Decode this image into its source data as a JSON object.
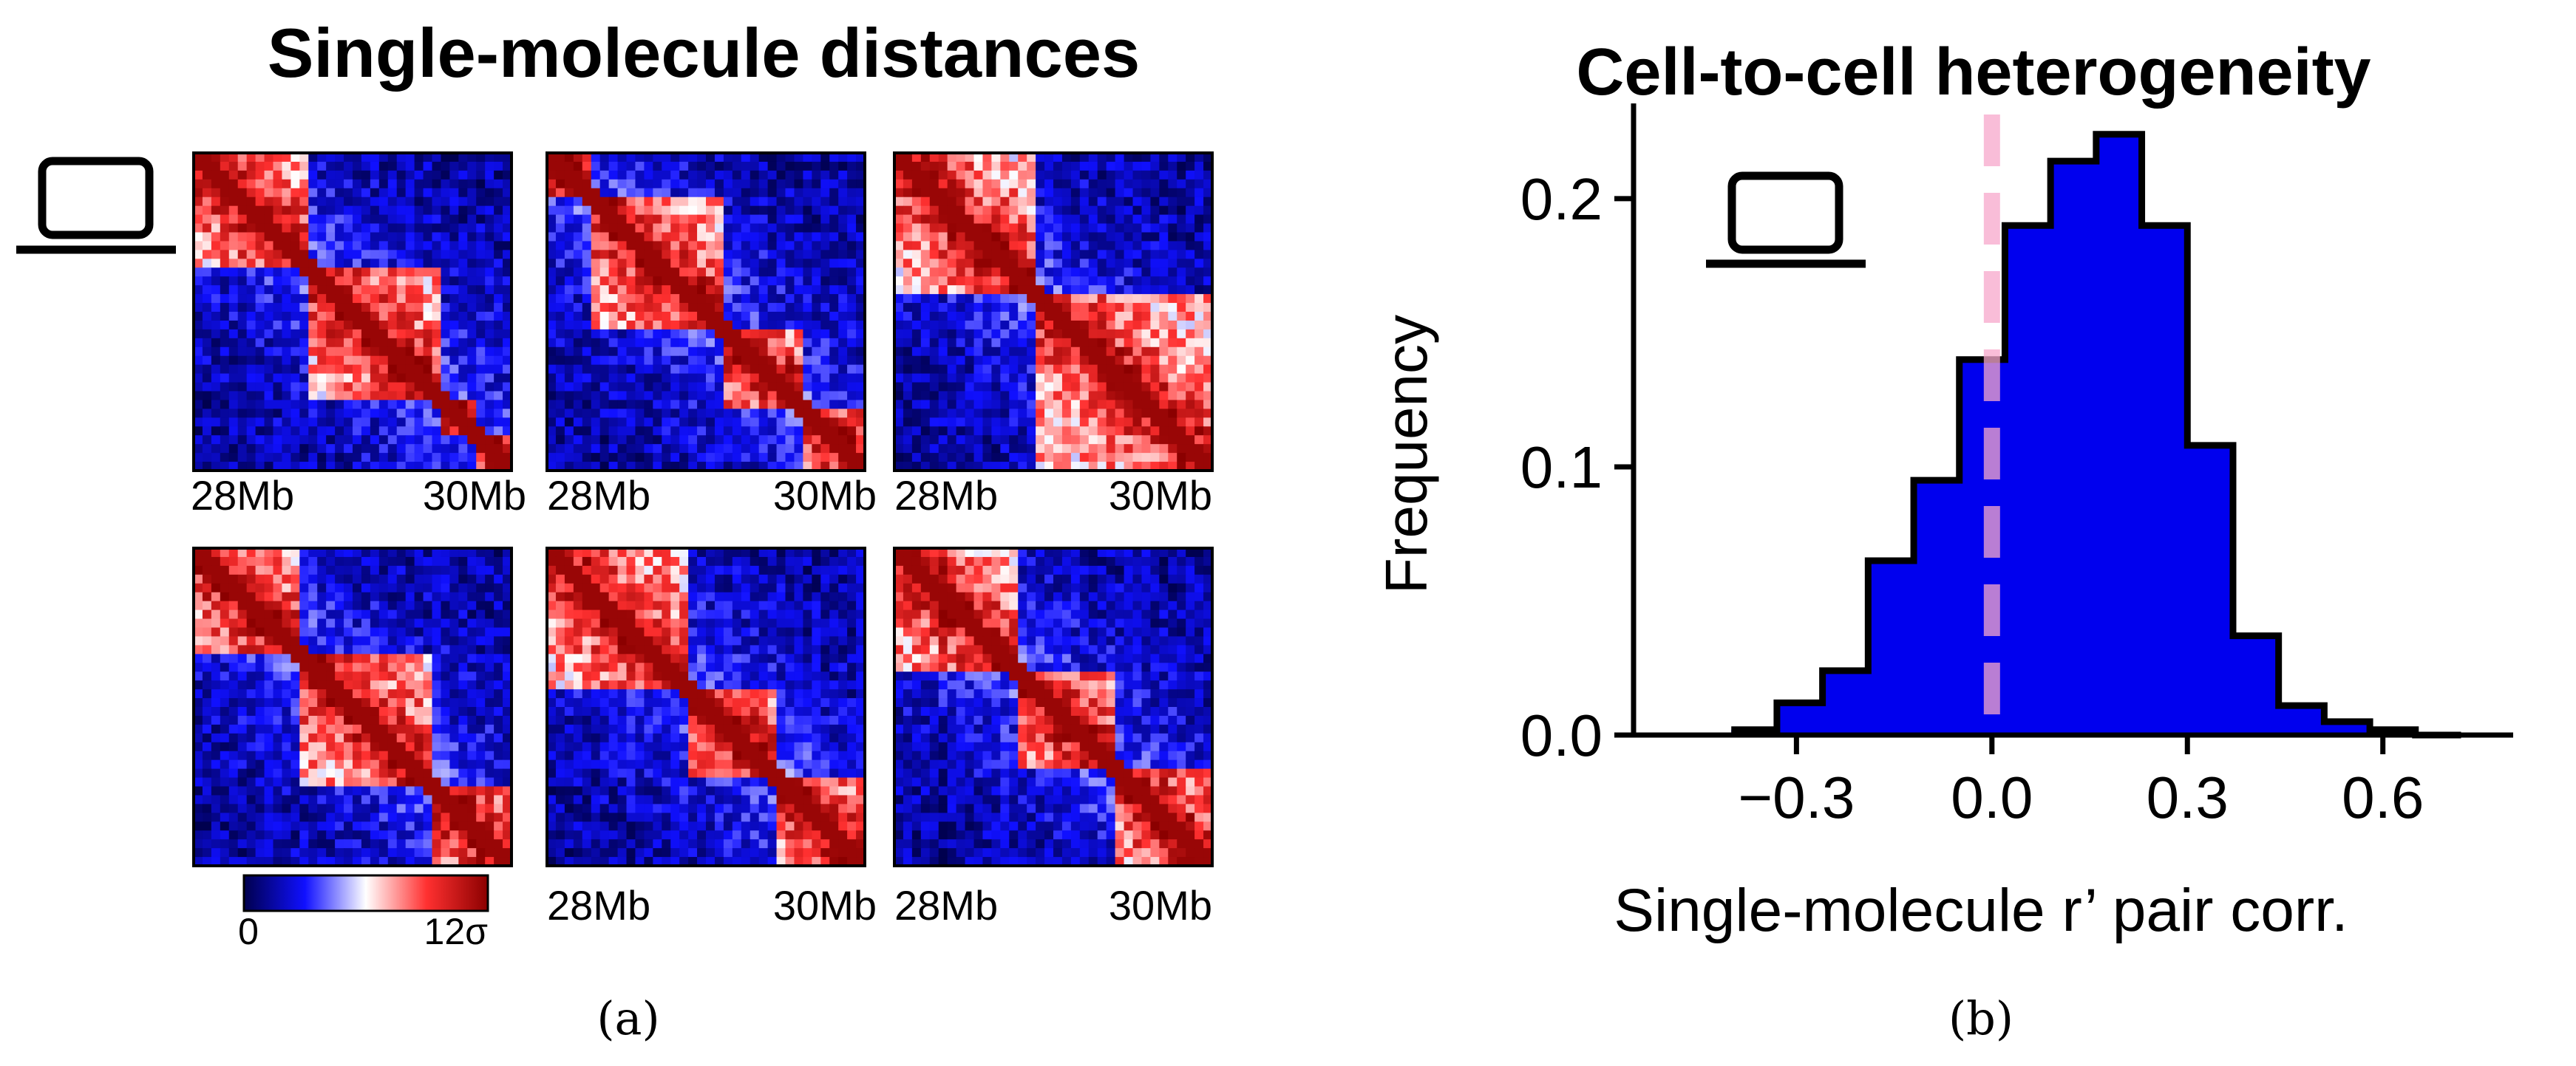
{
  "chart_data": [
    {
      "type": "heatmap",
      "panel_label": "(a)",
      "title": "Single-molecule distances",
      "icon": "laptop-icon",
      "x_tick_labels": [
        "28Mb",
        "30Mb"
      ],
      "colorbar": {
        "min_label": "0",
        "max_label": "12σ",
        "colors": [
          "#00004d",
          "#1010ff",
          "#ffffff",
          "#ff3030",
          "#8b0000"
        ]
      },
      "maps": [
        {
          "row": 1,
          "col": 1,
          "x_ticks_shown": true,
          "domains": [
            [
              0.0,
              0.35
            ],
            [
              0.35,
              0.78
            ],
            [
              0.78,
              0.88
            ],
            [
              0.88,
              1.0
            ]
          ]
        },
        {
          "row": 1,
          "col": 2,
          "x_ticks_shown": true,
          "domains": [
            [
              0.0,
              0.15
            ],
            [
              0.15,
              0.55
            ],
            [
              0.55,
              0.8
            ],
            [
              0.8,
              1.0
            ]
          ]
        },
        {
          "row": 1,
          "col": 3,
          "x_ticks_shown": true,
          "domains": [
            [
              0.0,
              0.45
            ],
            [
              0.45,
              1.0
            ]
          ]
        },
        {
          "row": 2,
          "col": 1,
          "x_ticks_shown": false,
          "domains": [
            [
              0.0,
              0.32
            ],
            [
              0.32,
              0.75
            ],
            [
              0.75,
              1.0
            ]
          ]
        },
        {
          "row": 2,
          "col": 2,
          "x_ticks_shown": true,
          "domains": [
            [
              0.0,
              0.45
            ],
            [
              0.45,
              0.72
            ],
            [
              0.72,
              1.0
            ]
          ]
        },
        {
          "row": 2,
          "col": 3,
          "x_ticks_shown": true,
          "domains": [
            [
              0.0,
              0.4
            ],
            [
              0.4,
              0.7
            ],
            [
              0.7,
              1.0
            ]
          ]
        }
      ]
    },
    {
      "type": "bar",
      "subtype": "histogram",
      "panel_label": "(b)",
      "title": "Cell-to-cell heterogeneity",
      "icon": "laptop-icon",
      "xlabel": "Single-molecule r’ pair corr.",
      "ylabel": "Frequency",
      "bin_edges": [
        -0.4,
        -0.33,
        -0.26,
        -0.19,
        -0.12,
        -0.05,
        0.02,
        0.09,
        0.16,
        0.23,
        0.3,
        0.37,
        0.44,
        0.51,
        0.58,
        0.65,
        0.72
      ],
      "values": [
        0.002,
        0.012,
        0.024,
        0.065,
        0.095,
        0.14,
        0.19,
        0.214,
        0.224,
        0.19,
        0.108,
        0.037,
        0.011,
        0.005,
        0.002,
        0.0
      ],
      "xlim": [
        -0.55,
        0.8
      ],
      "ylim": [
        0.0,
        0.23
      ],
      "x_ticks": [
        "−0.3",
        "0.0",
        "0.3",
        "0.6"
      ],
      "x_tick_values": [
        -0.3,
        0.0,
        0.3,
        0.6
      ],
      "y_ticks": [
        "0.0",
        "0.1",
        "0.2"
      ],
      "y_tick_values": [
        0.0,
        0.1,
        0.2
      ],
      "reference_line_x": 0.0,
      "colors": {
        "bar": "#0000ee",
        "edge": "#000000",
        "reference_line": "#f7a8cc"
      }
    }
  ]
}
